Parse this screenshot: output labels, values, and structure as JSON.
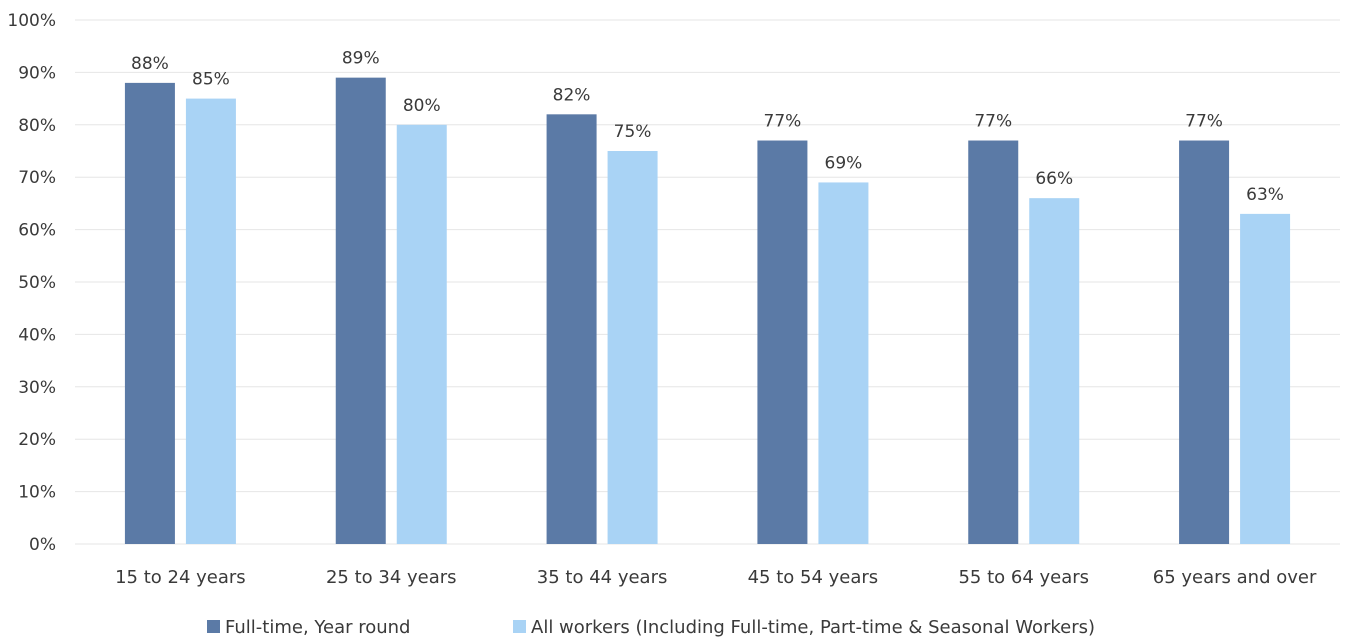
{
  "chart_data": {
    "type": "bar",
    "categories": [
      "15 to 24 years",
      "25 to 34 years",
      "35 to 44 years",
      "45 to 54 years",
      "55 to 64 years",
      "65 years and over"
    ],
    "series": [
      {
        "name": "Full-time, Year round",
        "values": [
          88,
          89,
          82,
          77,
          77,
          77
        ],
        "labels": [
          "88%",
          "89%",
          "82%",
          "77%",
          "77%",
          "77%"
        ],
        "color": "#5b7aa6"
      },
      {
        "name": "All workers (Including Full-time, Part-time & Seasonal Workers)",
        "values": [
          85,
          80,
          75,
          69,
          66,
          63
        ],
        "labels": [
          "85%",
          "80%",
          "75%",
          "69%",
          "66%",
          "63%"
        ],
        "color": "#a9d3f5"
      }
    ],
    "yticks": [
      "0%",
      "10%",
      "20%",
      "30%",
      "40%",
      "50%",
      "60%",
      "70%",
      "80%",
      "90%",
      "100%"
    ],
    "ylim": [
      0,
      100
    ],
    "grid": true,
    "legend_position": "bottom",
    "title": "",
    "xlabel": "",
    "ylabel": ""
  }
}
